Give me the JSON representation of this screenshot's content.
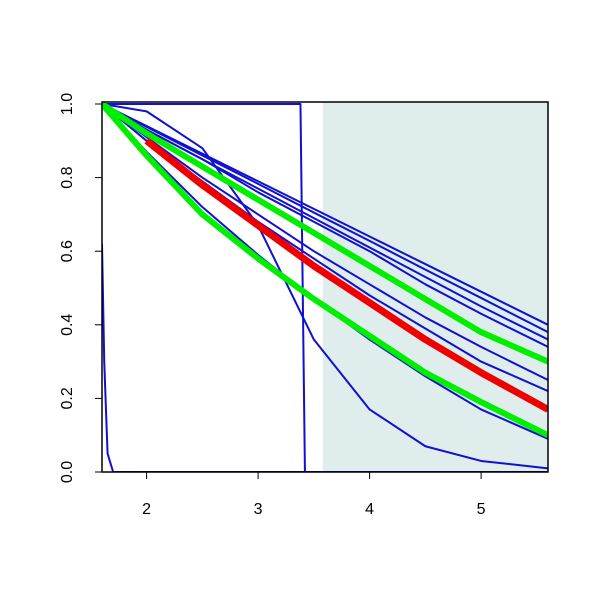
{
  "chart_data": {
    "type": "line",
    "xlim": [
      1.6,
      5.6
    ],
    "ylim": [
      0,
      1
    ],
    "xticks": [
      2,
      3,
      4,
      5
    ],
    "yticks": [
      {
        "value": 0,
        "label": "0.0"
      },
      {
        "value": 0.2,
        "label": "0.2"
      },
      {
        "value": 0.4,
        "label": "0.4"
      },
      {
        "value": 0.6,
        "label": "0.6"
      },
      {
        "value": 0.8,
        "label": "0.8"
      },
      {
        "value": 1,
        "label": "1.0"
      }
    ],
    "shaded_region": {
      "xlim": [
        3.58,
        5.6
      ],
      "color": "#e0eded"
    },
    "x": [
      1.6,
      2.0,
      2.5,
      3.0,
      3.5,
      4.0,
      4.5,
      5.0,
      5.6
    ],
    "series": [
      {
        "color": "#1010d0",
        "width": 2,
        "values": [
          1,
          0.94,
          0.865,
          0.79,
          0.715,
          0.64,
          0.565,
          0.49,
          0.4
        ]
      },
      {
        "color": "#1010d0",
        "width": 2,
        "values": [
          1,
          0.938,
          0.86,
          0.783,
          0.705,
          0.628,
          0.55,
          0.473,
          0.38
        ]
      },
      {
        "color": "#1010d0",
        "width": 2,
        "values": [
          1,
          0.93,
          0.85,
          0.77,
          0.69,
          0.61,
          0.53,
          0.45,
          0.36
        ]
      },
      {
        "color": "#1010d0",
        "width": 2,
        "values": [
          1,
          0.93,
          0.85,
          0.76,
          0.68,
          0.6,
          0.51,
          0.43,
          0.34
        ]
      },
      {
        "color": "#1010d0",
        "width": 2,
        "values": [
          1,
          0.91,
          0.8,
          0.7,
          0.6,
          0.51,
          0.42,
          0.34,
          0.25
        ]
      },
      {
        "color": "#1010d0",
        "width": 2,
        "values": [
          1,
          0.9,
          0.79,
          0.68,
          0.58,
          0.48,
          0.39,
          0.3,
          0.22
        ]
      },
      {
        "color": "#1010d0",
        "width": 2,
        "values": [
          1,
          0.87,
          0.72,
          0.59,
          0.47,
          0.36,
          0.26,
          0.17,
          0.09
        ]
      },
      {
        "color": "#1010d0",
        "width": 2,
        "values": [
          1,
          0.98,
          0.88,
          0.67,
          0.36,
          0.17,
          0.07,
          0.03,
          0.01
        ]
      },
      {
        "color": "#1010d0",
        "width": 2,
        "x": [
          1.6,
          3.38,
          3.42,
          5.6
        ],
        "values": [
          1,
          1,
          0,
          0
        ]
      },
      {
        "color": "#1010d0",
        "width": 2,
        "x": [
          1.6,
          1.62,
          1.65,
          1.7,
          5.6
        ],
        "values": [
          0.62,
          0.3,
          0.05,
          0,
          0
        ]
      },
      {
        "color": "#00ee00",
        "width": 6,
        "values": [
          1,
          0.92,
          0.83,
          0.74,
          0.65,
          0.56,
          0.47,
          0.38,
          0.3
        ]
      },
      {
        "color": "#00ee00",
        "width": 6,
        "values": [
          1,
          0.86,
          0.7,
          0.58,
          0.47,
          0.37,
          0.27,
          0.19,
          0.1
        ]
      },
      {
        "color": "#ee0000",
        "width": 7,
        "values": [
          null,
          0.9,
          0.78,
          0.67,
          0.56,
          0.46,
          0.36,
          0.27,
          0.17
        ]
      }
    ]
  }
}
